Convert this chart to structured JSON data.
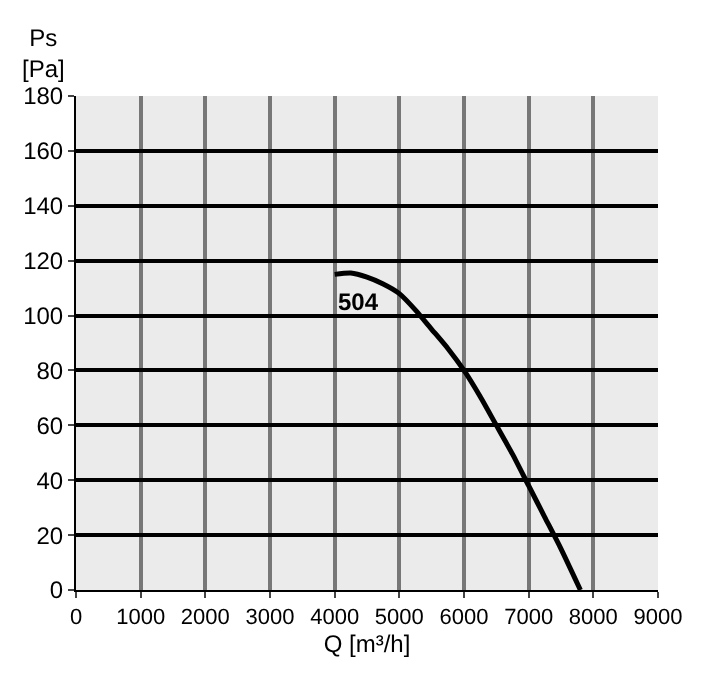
{
  "chart_data": {
    "type": "line",
    "xlabel": "Q [m³/h]",
    "ylabel": "Ps\n[Pa]",
    "x": [
      4000,
      4250,
      4500,
      4750,
      5000,
      5250,
      5500,
      5750,
      6000,
      6250,
      6500,
      6750,
      7000,
      7250,
      7500,
      7800
    ],
    "series": [
      {
        "color": "#000000",
        "values": [
          115,
          115.5,
          114,
          111.5,
          108,
          102,
          95,
          88,
          80,
          70.5,
          60,
          49.5,
          38,
          26.5,
          15,
          0
        ]
      }
    ],
    "annotations": [
      "504"
    ],
    "xlim": [
      0,
      9000
    ],
    "xticks": [
      0,
      1000,
      2000,
      3000,
      4000,
      5000,
      6000,
      7000,
      8000,
      9000
    ],
    "ylim": [
      0,
      180
    ],
    "yticks": [
      0,
      20,
      40,
      60,
      80,
      100,
      120,
      140,
      160,
      180
    ],
    "grid": true,
    "marker": "none",
    "line_style": "solid"
  }
}
